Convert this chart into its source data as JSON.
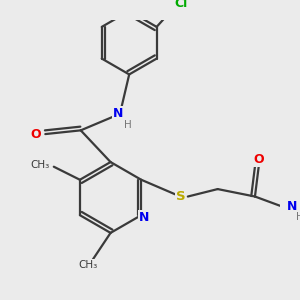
{
  "bg_color": "#ebebeb",
  "atom_colors": {
    "C": "#3a3a3a",
    "N": "#0000ee",
    "O": "#ee0000",
    "S": "#bbaa00",
    "Cl": "#00aa00",
    "H": "#777777"
  },
  "bond_color": "#3a3a3a",
  "bond_lw": 1.6,
  "figsize": [
    3.0,
    3.0
  ],
  "dpi": 100
}
